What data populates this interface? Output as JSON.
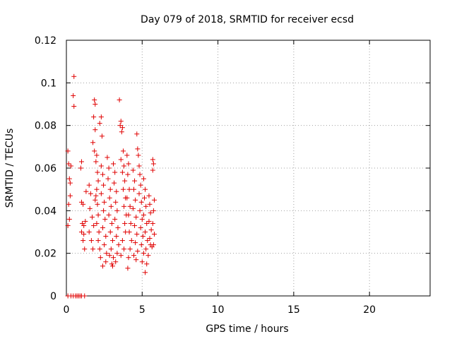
{
  "chart_data": {
    "type": "scatter",
    "title": "Day 079 of 2018, SRMTID for receiver ecsd",
    "xlabel": "GPS time / hours",
    "ylabel": "SRMTID / TECUs",
    "xlim": [
      0,
      24
    ],
    "ylim": [
      0,
      0.12
    ],
    "x_ticks": [
      0,
      5,
      10,
      15,
      20
    ],
    "x_tick_labels": [
      "0",
      "5",
      "10",
      "15",
      "20"
    ],
    "y_ticks": [
      0,
      0.02,
      0.04,
      0.06,
      0.08,
      0.1,
      0.12
    ],
    "y_tick_labels": [
      "0",
      "0.02",
      "0.04",
      "0.06",
      "0.08",
      "0.1",
      "0.12"
    ],
    "grid": true,
    "marker": "+",
    "series": [
      {
        "name": "SRMTID",
        "color": "#e00000",
        "points": [
          [
            0.1,
            0
          ],
          [
            0.3,
            0
          ],
          [
            0.45,
            0
          ],
          [
            0.6,
            0
          ],
          [
            0.7,
            0
          ],
          [
            0.8,
            0
          ],
          [
            0.9,
            0
          ],
          [
            1.0,
            0
          ],
          [
            1.2,
            0
          ],
          [
            0.1,
            0.068
          ],
          [
            0.15,
            0.062
          ],
          [
            0.2,
            0.055
          ],
          [
            0.25,
            0.047
          ],
          [
            0.15,
            0.043
          ],
          [
            0.2,
            0.036
          ],
          [
            0.1,
            0.033
          ],
          [
            0.3,
            0.061
          ],
          [
            0.25,
            0.053
          ],
          [
            0.5,
            0.103
          ],
          [
            0.45,
            0.094
          ],
          [
            0.5,
            0.089
          ],
          [
            1.0,
            0.063
          ],
          [
            0.95,
            0.06
          ],
          [
            1.0,
            0.044
          ],
          [
            1.1,
            0.043
          ],
          [
            1.05,
            0.034
          ],
          [
            1.15,
            0.033
          ],
          [
            1.0,
            0.03
          ],
          [
            1.1,
            0.026
          ],
          [
            1.2,
            0.022
          ],
          [
            1.15,
            0.029
          ],
          [
            1.25,
            0.035
          ],
          [
            1.3,
            0.049
          ],
          [
            1.5,
            0.052
          ],
          [
            1.6,
            0.048
          ],
          [
            1.55,
            0.041
          ],
          [
            1.7,
            0.037
          ],
          [
            1.5,
            0.03
          ],
          [
            1.65,
            0.026
          ],
          [
            1.75,
            0.022
          ],
          [
            1.8,
            0.033
          ],
          [
            1.9,
            0.045
          ],
          [
            1.85,
            0.092
          ],
          [
            1.9,
            0.09
          ],
          [
            1.8,
            0.084
          ],
          [
            1.9,
            0.078
          ],
          [
            1.75,
            0.072
          ],
          [
            1.85,
            0.068
          ],
          [
            2.0,
            0.066
          ],
          [
            1.95,
            0.063
          ],
          [
            2.05,
            0.058
          ],
          [
            2.1,
            0.054
          ],
          [
            2.0,
            0.05
          ],
          [
            1.95,
            0.047
          ],
          [
            2.05,
            0.043
          ],
          [
            2.1,
            0.038
          ],
          [
            2.0,
            0.034
          ],
          [
            2.15,
            0.03
          ],
          [
            2.1,
            0.026
          ],
          [
            2.2,
            0.022
          ],
          [
            2.25,
            0.018
          ],
          [
            2.3,
            0.084
          ],
          [
            2.2,
            0.081
          ],
          [
            2.35,
            0.075
          ],
          [
            2.3,
            0.061
          ],
          [
            2.4,
            0.057
          ],
          [
            2.45,
            0.052
          ],
          [
            2.3,
            0.048
          ],
          [
            2.5,
            0.044
          ],
          [
            2.45,
            0.04
          ],
          [
            2.55,
            0.036
          ],
          [
            2.4,
            0.032
          ],
          [
            2.6,
            0.028
          ],
          [
            2.5,
            0.024
          ],
          [
            2.65,
            0.02
          ],
          [
            2.6,
            0.016
          ],
          [
            2.4,
            0.014
          ],
          [
            2.7,
            0.065
          ],
          [
            2.8,
            0.06
          ],
          [
            2.75,
            0.055
          ],
          [
            2.9,
            0.05
          ],
          [
            2.85,
            0.046
          ],
          [
            2.95,
            0.042
          ],
          [
            2.8,
            0.038
          ],
          [
            3.0,
            0.034
          ],
          [
            2.9,
            0.03
          ],
          [
            3.05,
            0.026
          ],
          [
            2.95,
            0.022
          ],
          [
            3.1,
            0.018
          ],
          [
            3.0,
            0.015
          ],
          [
            3.05,
            0.014
          ],
          [
            2.85,
            0.019
          ],
          [
            3.1,
            0.062
          ],
          [
            3.2,
            0.058
          ],
          [
            3.15,
            0.053
          ],
          [
            3.3,
            0.049
          ],
          [
            3.25,
            0.044
          ],
          [
            3.35,
            0.04
          ],
          [
            3.2,
            0.036
          ],
          [
            3.4,
            0.032
          ],
          [
            3.3,
            0.028
          ],
          [
            3.45,
            0.024
          ],
          [
            3.35,
            0.02
          ],
          [
            3.25,
            0.016
          ],
          [
            3.5,
            0.092
          ],
          [
            3.6,
            0.082
          ],
          [
            3.55,
            0.08
          ],
          [
            3.7,
            0.079
          ],
          [
            3.65,
            0.077
          ],
          [
            3.75,
            0.068
          ],
          [
            3.6,
            0.064
          ],
          [
            3.8,
            0.061
          ],
          [
            3.7,
            0.058
          ],
          [
            3.85,
            0.054
          ],
          [
            3.75,
            0.05
          ],
          [
            3.9,
            0.046
          ],
          [
            3.8,
            0.042
          ],
          [
            3.95,
            0.038
          ],
          [
            3.85,
            0.034
          ],
          [
            3.9,
            0.03
          ],
          [
            3.7,
            0.026
          ],
          [
            3.8,
            0.022
          ],
          [
            3.6,
            0.019
          ],
          [
            4.0,
            0.066
          ],
          [
            4.1,
            0.062
          ],
          [
            4.05,
            0.057
          ],
          [
            4.15,
            0.05
          ],
          [
            4.0,
            0.046
          ],
          [
            4.2,
            0.042
          ],
          [
            4.1,
            0.038
          ],
          [
            4.25,
            0.034
          ],
          [
            4.15,
            0.03
          ],
          [
            4.3,
            0.026
          ],
          [
            4.2,
            0.022
          ],
          [
            4.1,
            0.018
          ],
          [
            4.05,
            0.013
          ],
          [
            4.4,
            0.059
          ],
          [
            4.5,
            0.054
          ],
          [
            4.45,
            0.05
          ],
          [
            4.55,
            0.045
          ],
          [
            4.4,
            0.041
          ],
          [
            4.6,
            0.037
          ],
          [
            4.5,
            0.033
          ],
          [
            4.65,
            0.029
          ],
          [
            4.55,
            0.025
          ],
          [
            4.7,
            0.021
          ],
          [
            4.6,
            0.017
          ],
          [
            4.45,
            0.019
          ],
          [
            4.65,
            0.076
          ],
          [
            4.7,
            0.069
          ],
          [
            4.75,
            0.066
          ],
          [
            4.8,
            0.061
          ],
          [
            4.85,
            0.057
          ],
          [
            4.9,
            0.052
          ],
          [
            4.8,
            0.048
          ],
          [
            4.95,
            0.044
          ],
          [
            4.85,
            0.04
          ],
          [
            5.0,
            0.036
          ],
          [
            4.9,
            0.032
          ],
          [
            5.05,
            0.028
          ],
          [
            4.95,
            0.024
          ],
          [
            5.1,
            0.02
          ],
          [
            5.0,
            0.016
          ],
          [
            5.1,
            0.055
          ],
          [
            5.2,
            0.05
          ],
          [
            5.15,
            0.046
          ],
          [
            5.25,
            0.042
          ],
          [
            5.1,
            0.038
          ],
          [
            5.3,
            0.034
          ],
          [
            5.2,
            0.03
          ],
          [
            5.35,
            0.026
          ],
          [
            5.25,
            0.022
          ],
          [
            5.4,
            0.019
          ],
          [
            5.3,
            0.015
          ],
          [
            5.2,
            0.011
          ],
          [
            5.45,
            0.047
          ],
          [
            5.5,
            0.043
          ],
          [
            5.55,
            0.039
          ],
          [
            5.45,
            0.035
          ],
          [
            5.6,
            0.031
          ],
          [
            5.5,
            0.027
          ],
          [
            5.65,
            0.023
          ],
          [
            5.55,
            0.024
          ],
          [
            5.7,
            0.064
          ],
          [
            5.75,
            0.062
          ],
          [
            5.7,
            0.059
          ],
          [
            5.8,
            0.045
          ],
          [
            5.75,
            0.04
          ],
          [
            5.7,
            0.034
          ],
          [
            5.8,
            0.029
          ],
          [
            5.75,
            0.024
          ]
        ]
      }
    ]
  }
}
